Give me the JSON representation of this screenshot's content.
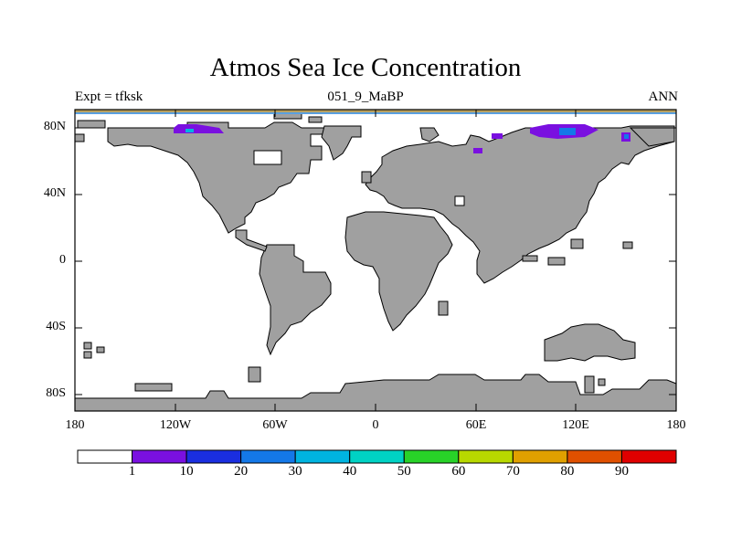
{
  "title": "Atmos Sea Ice Concentration",
  "left_label": "Expt = tfksk",
  "center_label": "051_9_MaBP",
  "right_label": "ANN",
  "map": {
    "projection": "cylindrical equidistant",
    "lon_range": [
      -180,
      180
    ],
    "lat_range": [
      -90,
      90
    ],
    "land_color": "#a0a0a0",
    "ocean_color": "#ffffff",
    "y_ticks": [
      "80N",
      "40N",
      "0",
      "40S",
      "80S"
    ],
    "x_ticks": [
      "180",
      "120W",
      "60W",
      "0",
      "60E",
      "120E",
      "180"
    ]
  },
  "colorbar": {
    "colors": [
      "#ffffff",
      "#7a10e0",
      "#1a2ee0",
      "#1478e8",
      "#00b4e0",
      "#00d2c4",
      "#28d228",
      "#b8d800",
      "#e0a000",
      "#e05000",
      "#e00000"
    ],
    "labels": [
      "1",
      "10",
      "20",
      "30",
      "40",
      "50",
      "60",
      "70",
      "80",
      "90"
    ]
  },
  "ice_colors": {
    "low": "#7a10e0",
    "mid": "#1478e8",
    "high": "#00b4e0"
  }
}
